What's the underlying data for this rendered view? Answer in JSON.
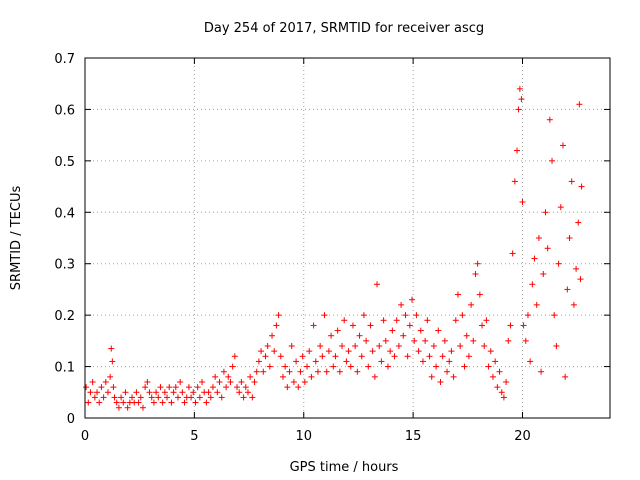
{
  "chart_data": {
    "type": "scatter",
    "title": "Day 254 of 2017, SRMTID for receiver ascg",
    "xlabel": "GPS time / hours",
    "ylabel": "SRMTID / TECUs",
    "xlim": [
      0,
      24
    ],
    "ylim": [
      0,
      0.7
    ],
    "xticks": [
      0,
      5,
      10,
      15,
      20
    ],
    "yticks": [
      0,
      0.1,
      0.2,
      0.3,
      0.4,
      0.5,
      0.6,
      0.7
    ],
    "grid": true,
    "marker": "+",
    "color": "#ff0000",
    "series": [
      {
        "name": "SRMTID",
        "points": [
          [
            0.05,
            0.06
          ],
          [
            0.15,
            0.03
          ],
          [
            0.25,
            0.05
          ],
          [
            0.35,
            0.07
          ],
          [
            0.45,
            0.04
          ],
          [
            0.55,
            0.05
          ],
          [
            0.65,
            0.03
          ],
          [
            0.75,
            0.06
          ],
          [
            0.85,
            0.04
          ],
          [
            0.95,
            0.07
          ],
          [
            1.05,
            0.05
          ],
          [
            1.15,
            0.08
          ],
          [
            1.2,
            0.135
          ],
          [
            1.25,
            0.11
          ],
          [
            1.3,
            0.06
          ],
          [
            1.35,
            0.04
          ],
          [
            1.45,
            0.03
          ],
          [
            1.55,
            0.02
          ],
          [
            1.65,
            0.04
          ],
          [
            1.75,
            0.03
          ],
          [
            1.85,
            0.05
          ],
          [
            1.95,
            0.02
          ],
          [
            2.05,
            0.03
          ],
          [
            2.15,
            0.04
          ],
          [
            2.25,
            0.03
          ],
          [
            2.35,
            0.05
          ],
          [
            2.45,
            0.03
          ],
          [
            2.55,
            0.04
          ],
          [
            2.65,
            0.02
          ],
          [
            2.75,
            0.06
          ],
          [
            2.85,
            0.07
          ],
          [
            2.95,
            0.05
          ],
          [
            3.05,
            0.04
          ],
          [
            3.15,
            0.03
          ],
          [
            3.25,
            0.05
          ],
          [
            3.35,
            0.04
          ],
          [
            3.45,
            0.06
          ],
          [
            3.55,
            0.03
          ],
          [
            3.65,
            0.05
          ],
          [
            3.75,
            0.04
          ],
          [
            3.85,
            0.06
          ],
          [
            3.95,
            0.03
          ],
          [
            4.05,
            0.05
          ],
          [
            4.15,
            0.06
          ],
          [
            4.25,
            0.04
          ],
          [
            4.35,
            0.07
          ],
          [
            4.45,
            0.05
          ],
          [
            4.55,
            0.03
          ],
          [
            4.65,
            0.04
          ],
          [
            4.75,
            0.06
          ],
          [
            4.85,
            0.04
          ],
          [
            4.95,
            0.05
          ],
          [
            5.05,
            0.03
          ],
          [
            5.15,
            0.06
          ],
          [
            5.25,
            0.04
          ],
          [
            5.35,
            0.07
          ],
          [
            5.45,
            0.05
          ],
          [
            5.55,
            0.03
          ],
          [
            5.65,
            0.05
          ],
          [
            5.75,
            0.04
          ],
          [
            5.85,
            0.06
          ],
          [
            5.95,
            0.08
          ],
          [
            6.05,
            0.05
          ],
          [
            6.15,
            0.07
          ],
          [
            6.25,
            0.04
          ],
          [
            6.35,
            0.09
          ],
          [
            6.45,
            0.06
          ],
          [
            6.55,
            0.08
          ],
          [
            6.65,
            0.07
          ],
          [
            6.75,
            0.1
          ],
          [
            6.85,
            0.12
          ],
          [
            6.95,
            0.06
          ],
          [
            7.05,
            0.05
          ],
          [
            7.15,
            0.07
          ],
          [
            7.25,
            0.04
          ],
          [
            7.35,
            0.06
          ],
          [
            7.45,
            0.05
          ],
          [
            7.55,
            0.08
          ],
          [
            7.65,
            0.04
          ],
          [
            7.75,
            0.07
          ],
          [
            7.85,
            0.09
          ],
          [
            7.95,
            0.11
          ],
          [
            8.05,
            0.13
          ],
          [
            8.15,
            0.09
          ],
          [
            8.25,
            0.12
          ],
          [
            8.35,
            0.14
          ],
          [
            8.45,
            0.1
          ],
          [
            8.55,
            0.16
          ],
          [
            8.65,
            0.13
          ],
          [
            8.75,
            0.18
          ],
          [
            8.85,
            0.2
          ],
          [
            8.95,
            0.12
          ],
          [
            9.05,
            0.08
          ],
          [
            9.15,
            0.1
          ],
          [
            9.25,
            0.06
          ],
          [
            9.35,
            0.09
          ],
          [
            9.45,
            0.14
          ],
          [
            9.55,
            0.07
          ],
          [
            9.65,
            0.11
          ],
          [
            9.75,
            0.06
          ],
          [
            9.85,
            0.09
          ],
          [
            9.95,
            0.12
          ],
          [
            10.05,
            0.07
          ],
          [
            10.15,
            0.1
          ],
          [
            10.25,
            0.13
          ],
          [
            10.35,
            0.08
          ],
          [
            10.45,
            0.18
          ],
          [
            10.55,
            0.11
          ],
          [
            10.65,
            0.09
          ],
          [
            10.75,
            0.14
          ],
          [
            10.85,
            0.12
          ],
          [
            10.95,
            0.2
          ],
          [
            11.05,
            0.09
          ],
          [
            11.15,
            0.13
          ],
          [
            11.25,
            0.16
          ],
          [
            11.35,
            0.1
          ],
          [
            11.45,
            0.12
          ],
          [
            11.55,
            0.17
          ],
          [
            11.65,
            0.09
          ],
          [
            11.75,
            0.14
          ],
          [
            11.85,
            0.19
          ],
          [
            11.95,
            0.11
          ],
          [
            12.05,
            0.13
          ],
          [
            12.15,
            0.1
          ],
          [
            12.25,
            0.18
          ],
          [
            12.35,
            0.14
          ],
          [
            12.45,
            0.09
          ],
          [
            12.55,
            0.16
          ],
          [
            12.65,
            0.12
          ],
          [
            12.75,
            0.2
          ],
          [
            12.85,
            0.15
          ],
          [
            12.95,
            0.1
          ],
          [
            13.05,
            0.18
          ],
          [
            13.15,
            0.13
          ],
          [
            13.25,
            0.08
          ],
          [
            13.35,
            0.26
          ],
          [
            13.45,
            0.14
          ],
          [
            13.55,
            0.11
          ],
          [
            13.65,
            0.19
          ],
          [
            13.75,
            0.15
          ],
          [
            13.85,
            0.1
          ],
          [
            13.95,
            0.13
          ],
          [
            14.05,
            0.17
          ],
          [
            14.15,
            0.12
          ],
          [
            14.25,
            0.19
          ],
          [
            14.35,
            0.14
          ],
          [
            14.45,
            0.22
          ],
          [
            14.55,
            0.16
          ],
          [
            14.65,
            0.2
          ],
          [
            14.75,
            0.12
          ],
          [
            14.85,
            0.18
          ],
          [
            14.95,
            0.23
          ],
          [
            15.05,
            0.15
          ],
          [
            15.15,
            0.2
          ],
          [
            15.25,
            0.13
          ],
          [
            15.35,
            0.17
          ],
          [
            15.45,
            0.11
          ],
          [
            15.55,
            0.15
          ],
          [
            15.65,
            0.19
          ],
          [
            15.75,
            0.12
          ],
          [
            15.85,
            0.08
          ],
          [
            15.95,
            0.14
          ],
          [
            16.05,
            0.1
          ],
          [
            16.15,
            0.17
          ],
          [
            16.25,
            0.07
          ],
          [
            16.35,
            0.12
          ],
          [
            16.45,
            0.15
          ],
          [
            16.55,
            0.09
          ],
          [
            16.65,
            0.11
          ],
          [
            16.75,
            0.13
          ],
          [
            16.85,
            0.08
          ],
          [
            16.95,
            0.19
          ],
          [
            17.05,
            0.24
          ],
          [
            17.15,
            0.14
          ],
          [
            17.25,
            0.2
          ],
          [
            17.35,
            0.1
          ],
          [
            17.45,
            0.16
          ],
          [
            17.55,
            0.12
          ],
          [
            17.65,
            0.22
          ],
          [
            17.75,
            0.15
          ],
          [
            17.85,
            0.28
          ],
          [
            17.95,
            0.3
          ],
          [
            18.05,
            0.24
          ],
          [
            18.15,
            0.18
          ],
          [
            18.25,
            0.14
          ],
          [
            18.35,
            0.19
          ],
          [
            18.45,
            0.1
          ],
          [
            18.55,
            0.13
          ],
          [
            18.65,
            0.08
          ],
          [
            18.75,
            0.11
          ],
          [
            18.85,
            0.06
          ],
          [
            18.95,
            0.09
          ],
          [
            19.05,
            0.05
          ],
          [
            19.15,
            0.04
          ],
          [
            19.25,
            0.07
          ],
          [
            19.35,
            0.15
          ],
          [
            19.45,
            0.18
          ],
          [
            19.55,
            0.32
          ],
          [
            19.65,
            0.46
          ],
          [
            19.75,
            0.52
          ],
          [
            19.82,
            0.6
          ],
          [
            19.88,
            0.64
          ],
          [
            19.95,
            0.62
          ],
          [
            20.0,
            0.42
          ],
          [
            20.05,
            0.18
          ],
          [
            20.15,
            0.15
          ],
          [
            20.25,
            0.2
          ],
          [
            20.35,
            0.11
          ],
          [
            20.45,
            0.26
          ],
          [
            20.55,
            0.31
          ],
          [
            20.65,
            0.22
          ],
          [
            20.75,
            0.35
          ],
          [
            20.85,
            0.09
          ],
          [
            20.95,
            0.28
          ],
          [
            21.05,
            0.4
          ],
          [
            21.15,
            0.33
          ],
          [
            21.25,
            0.58
          ],
          [
            21.35,
            0.5
          ],
          [
            21.45,
            0.2
          ],
          [
            21.55,
            0.14
          ],
          [
            21.65,
            0.3
          ],
          [
            21.75,
            0.41
          ],
          [
            21.85,
            0.53
          ],
          [
            21.95,
            0.08
          ],
          [
            22.05,
            0.25
          ],
          [
            22.15,
            0.35
          ],
          [
            22.25,
            0.46
          ],
          [
            22.35,
            0.22
          ],
          [
            22.45,
            0.29
          ],
          [
            22.55,
            0.38
          ],
          [
            22.6,
            0.61
          ],
          [
            22.65,
            0.27
          ],
          [
            22.7,
            0.45
          ]
        ]
      }
    ]
  }
}
